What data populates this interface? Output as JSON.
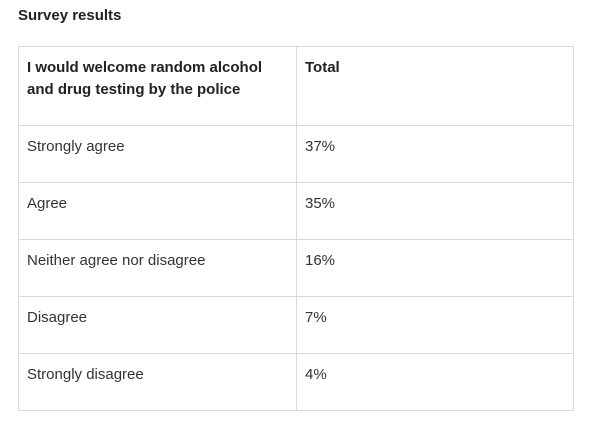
{
  "title": "Survey results",
  "table": {
    "headers": [
      "I would welcome random alcohol and drug testing by the police",
      "Total"
    ],
    "rows": [
      {
        "label": "Strongly agree",
        "total": "37%"
      },
      {
        "label": "Agree",
        "total": "35%"
      },
      {
        "label": "Neither agree nor disagree",
        "total": "16%"
      },
      {
        "label": "Disagree",
        "total": "7%"
      },
      {
        "label": "Strongly disagree",
        "total": "4%"
      }
    ]
  }
}
